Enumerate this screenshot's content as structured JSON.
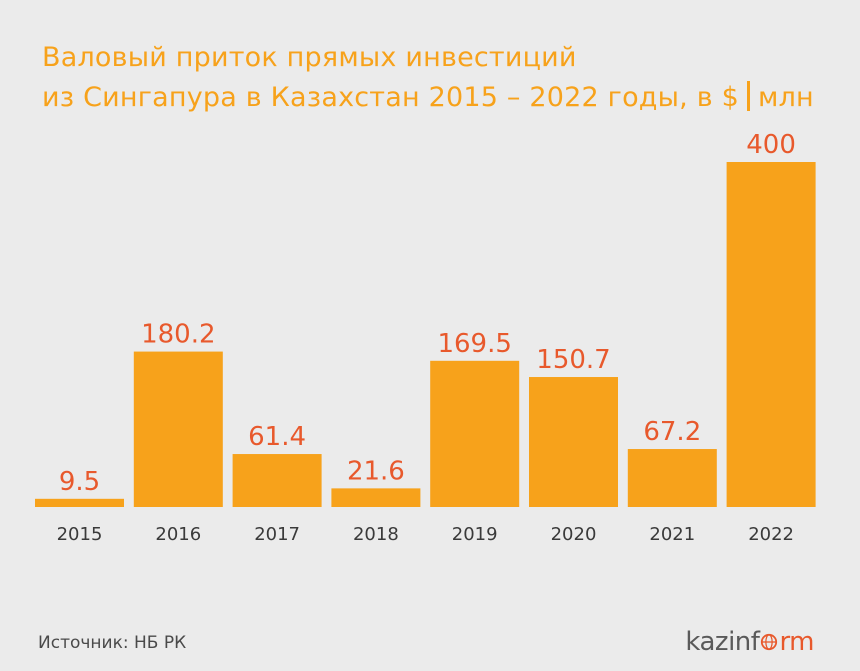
{
  "title": {
    "line1": "Валовый приток прямых инвестиций",
    "line2_main": "из Сингапура в Казахстан 2015 – 2022 годы, в $",
    "line2_unit": "млн"
  },
  "source": "Источник: НБ РК",
  "brand": {
    "part1": "kazinf",
    "part2": "rm"
  },
  "colors": {
    "bar": "#f7a21b",
    "value_label": "#e8592c",
    "title": "#f7a21b",
    "background": "#ebebeb"
  },
  "chart_data": {
    "type": "bar",
    "categories": [
      "2015",
      "2016",
      "2017",
      "2018",
      "2019",
      "2020",
      "2021",
      "2022"
    ],
    "values": [
      9.5,
      180.2,
      61.4,
      21.6,
      169.5,
      150.7,
      67.2,
      400
    ],
    "value_labels": [
      "9.5",
      "180.2",
      "61.4",
      "21.6",
      "169.5",
      "150.7",
      "67.2",
      "400"
    ],
    "ylim": [
      0,
      400
    ],
    "grid": false,
    "legend": "none"
  }
}
